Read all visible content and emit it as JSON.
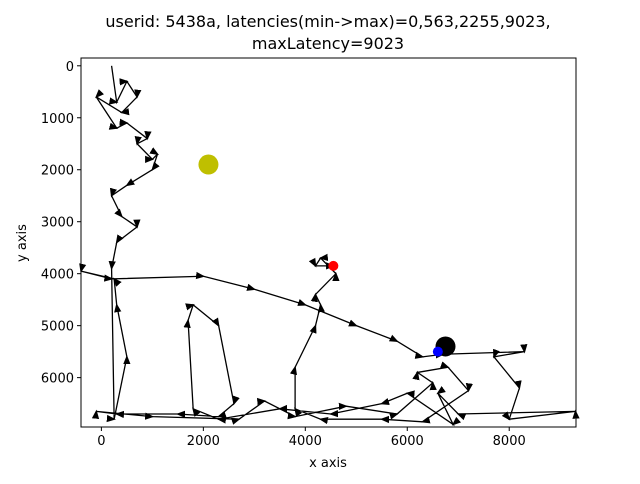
{
  "chart_data": {
    "type": "line",
    "title": [
      "userid: 5438a, latencies(min->max)=0,563,2255,9023,",
      "maxLatency=9023"
    ],
    "x_label": "x axis",
    "y_label": "y axis",
    "xlim": [
      -400,
      9310
    ],
    "ylim": [
      -150,
      6950
    ],
    "y_inverted": true,
    "xticks": [
      0,
      2000,
      4000,
      6000,
      8000
    ],
    "yticks": [
      0,
      1000,
      2000,
      3000,
      4000,
      5000,
      6000
    ],
    "series": [
      {
        "color": "#000000",
        "x": [
          200,
          300,
          500,
          700,
          400,
          -100,
          300,
          500,
          900,
          700,
          1000,
          1100,
          1000,
          500,
          200,
          400,
          700,
          300,
          200,
          250,
          500,
          300,
          250,
          -400,
          200,
          2000,
          3000,
          4000,
          5000,
          5800,
          6300,
          6700,
          8300,
          7700,
          8200,
          8000,
          9300,
          7000,
          6600,
          6900,
          6000,
          5500,
          4500,
          3500,
          2300,
          1800,
          1700,
          1800,
          2300,
          2600,
          2300,
          1500,
          300,
          -100,
          1000,
          2700,
          3200,
          3800,
          4800,
          5800,
          6500,
          6200,
          6800,
          7200,
          6300,
          5500,
          4300,
          3800,
          3800,
          4200,
          4300,
          4200,
          4600,
          4300,
          4200,
          4550
        ],
        "y": [
          0,
          700,
          300,
          600,
          900,
          600,
          1200,
          1100,
          1400,
          1500,
          1800,
          1700,
          2000,
          2300,
          2500,
          2900,
          3100,
          3400,
          3900,
          6800,
          5600,
          4600,
          4100,
          3950,
          4100,
          4050,
          4300,
          4600,
          5000,
          5300,
          5600,
          5550,
          5500,
          5600,
          6200,
          6800,
          6650,
          6700,
          6300,
          6900,
          6300,
          6500,
          6700,
          6600,
          6800,
          6600,
          4900,
          4600,
          5000,
          6500,
          6750,
          6700,
          6700,
          6650,
          6750,
          6800,
          6450,
          6750,
          6550,
          6700,
          6100,
          5900,
          5800,
          6250,
          6850,
          6800,
          6800,
          6600,
          5800,
          5000,
          4600,
          4400,
          4000,
          3700,
          3850,
          3850
        ]
      }
    ],
    "points": [
      {
        "x": 2100,
        "y": 1900,
        "color": "#bfbf00",
        "size": 10
      },
      {
        "x": 4550,
        "y": 3850,
        "color": "#ff0000",
        "size": 5
      },
      {
        "x": 6750,
        "y": 5400,
        "color": "#000000",
        "size": 10
      },
      {
        "x": 6600,
        "y": 5500,
        "color": "#0000ff",
        "size": 5
      }
    ]
  }
}
